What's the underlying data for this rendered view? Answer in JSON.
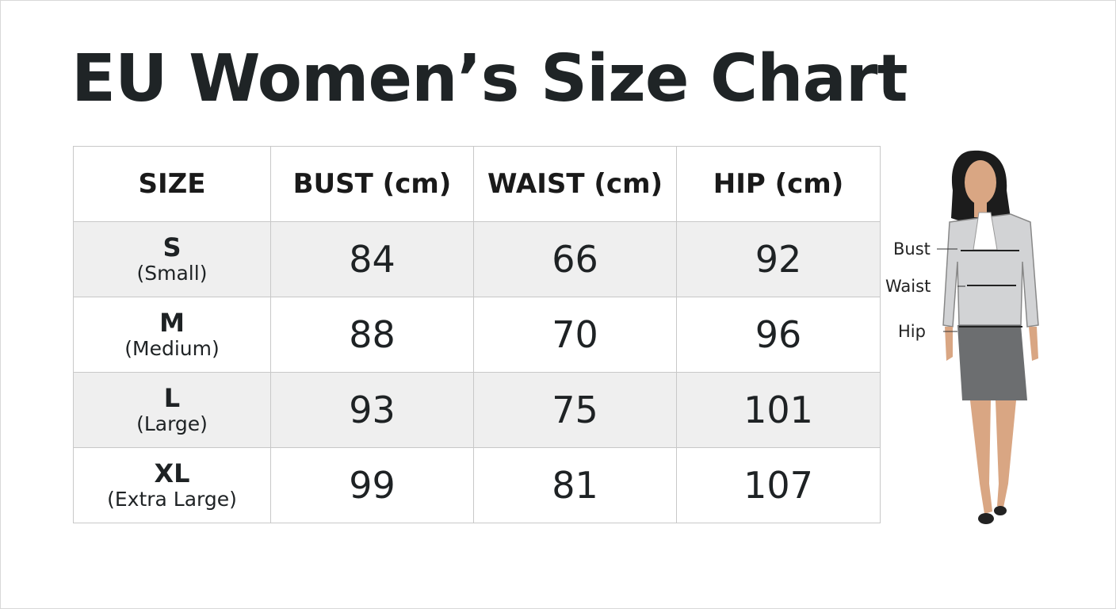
{
  "header": {
    "title": "EU Women’s Size Chart"
  },
  "table": {
    "columns": [
      "SIZE",
      "BUST (cm)",
      "WAIST (cm)",
      "HIP (cm)"
    ],
    "rows": [
      {
        "size": "S",
        "label": "(Small)",
        "values": [
          84,
          66,
          92
        ]
      },
      {
        "size": "M",
        "label": "(Medium)",
        "values": [
          88,
          70,
          96
        ]
      },
      {
        "size": "L",
        "label": "(Large)",
        "values": [
          93,
          75,
          101
        ]
      },
      {
        "size": "XL",
        "label": "(Extra Large)",
        "values": [
          99,
          81,
          107
        ]
      }
    ]
  },
  "figure": {
    "labels": [
      "Bust",
      "Waist",
      "Hip"
    ]
  }
}
